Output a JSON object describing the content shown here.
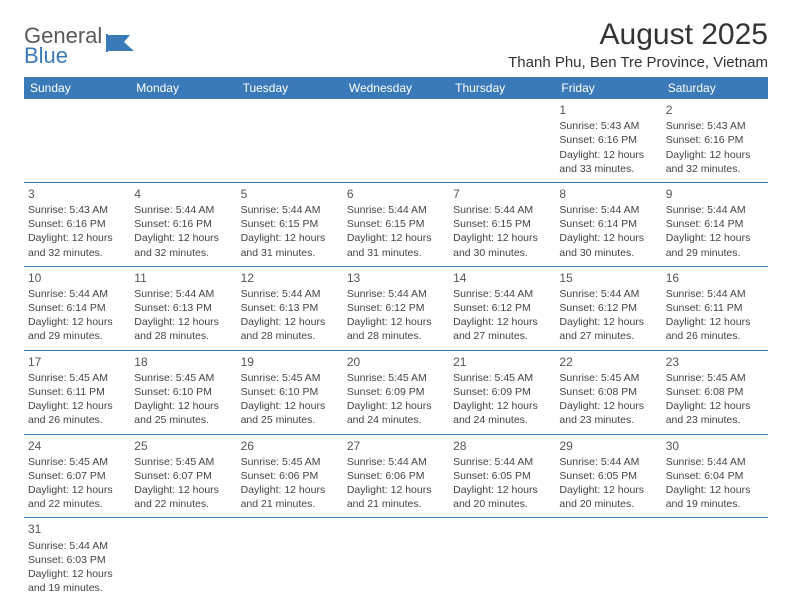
{
  "logo": {
    "word1": "General",
    "word2": "Blue"
  },
  "title": "August 2025",
  "location": "Thanh Phu, Ben Tre Province, Vietnam",
  "colors": {
    "header_bg": "#3a7ab8",
    "header_text": "#ffffff",
    "border": "#3a7ab8",
    "body_text": "#444444",
    "title_text": "#333333",
    "logo_gray": "#5a5a5a",
    "logo_blue": "#3a7ab8",
    "background": "#ffffff"
  },
  "days_of_week": [
    "Sunday",
    "Monday",
    "Tuesday",
    "Wednesday",
    "Thursday",
    "Friday",
    "Saturday"
  ],
  "weeks": [
    [
      null,
      null,
      null,
      null,
      null,
      {
        "n": "1",
        "sr": "Sunrise: 5:43 AM",
        "ss": "Sunset: 6:16 PM",
        "d1": "Daylight: 12 hours",
        "d2": "and 33 minutes."
      },
      {
        "n": "2",
        "sr": "Sunrise: 5:43 AM",
        "ss": "Sunset: 6:16 PM",
        "d1": "Daylight: 12 hours",
        "d2": "and 32 minutes."
      }
    ],
    [
      {
        "n": "3",
        "sr": "Sunrise: 5:43 AM",
        "ss": "Sunset: 6:16 PM",
        "d1": "Daylight: 12 hours",
        "d2": "and 32 minutes."
      },
      {
        "n": "4",
        "sr": "Sunrise: 5:44 AM",
        "ss": "Sunset: 6:16 PM",
        "d1": "Daylight: 12 hours",
        "d2": "and 32 minutes."
      },
      {
        "n": "5",
        "sr": "Sunrise: 5:44 AM",
        "ss": "Sunset: 6:15 PM",
        "d1": "Daylight: 12 hours",
        "d2": "and 31 minutes."
      },
      {
        "n": "6",
        "sr": "Sunrise: 5:44 AM",
        "ss": "Sunset: 6:15 PM",
        "d1": "Daylight: 12 hours",
        "d2": "and 31 minutes."
      },
      {
        "n": "7",
        "sr": "Sunrise: 5:44 AM",
        "ss": "Sunset: 6:15 PM",
        "d1": "Daylight: 12 hours",
        "d2": "and 30 minutes."
      },
      {
        "n": "8",
        "sr": "Sunrise: 5:44 AM",
        "ss": "Sunset: 6:14 PM",
        "d1": "Daylight: 12 hours",
        "d2": "and 30 minutes."
      },
      {
        "n": "9",
        "sr": "Sunrise: 5:44 AM",
        "ss": "Sunset: 6:14 PM",
        "d1": "Daylight: 12 hours",
        "d2": "and 29 minutes."
      }
    ],
    [
      {
        "n": "10",
        "sr": "Sunrise: 5:44 AM",
        "ss": "Sunset: 6:14 PM",
        "d1": "Daylight: 12 hours",
        "d2": "and 29 minutes."
      },
      {
        "n": "11",
        "sr": "Sunrise: 5:44 AM",
        "ss": "Sunset: 6:13 PM",
        "d1": "Daylight: 12 hours",
        "d2": "and 28 minutes."
      },
      {
        "n": "12",
        "sr": "Sunrise: 5:44 AM",
        "ss": "Sunset: 6:13 PM",
        "d1": "Daylight: 12 hours",
        "d2": "and 28 minutes."
      },
      {
        "n": "13",
        "sr": "Sunrise: 5:44 AM",
        "ss": "Sunset: 6:12 PM",
        "d1": "Daylight: 12 hours",
        "d2": "and 28 minutes."
      },
      {
        "n": "14",
        "sr": "Sunrise: 5:44 AM",
        "ss": "Sunset: 6:12 PM",
        "d1": "Daylight: 12 hours",
        "d2": "and 27 minutes."
      },
      {
        "n": "15",
        "sr": "Sunrise: 5:44 AM",
        "ss": "Sunset: 6:12 PM",
        "d1": "Daylight: 12 hours",
        "d2": "and 27 minutes."
      },
      {
        "n": "16",
        "sr": "Sunrise: 5:44 AM",
        "ss": "Sunset: 6:11 PM",
        "d1": "Daylight: 12 hours",
        "d2": "and 26 minutes."
      }
    ],
    [
      {
        "n": "17",
        "sr": "Sunrise: 5:45 AM",
        "ss": "Sunset: 6:11 PM",
        "d1": "Daylight: 12 hours",
        "d2": "and 26 minutes."
      },
      {
        "n": "18",
        "sr": "Sunrise: 5:45 AM",
        "ss": "Sunset: 6:10 PM",
        "d1": "Daylight: 12 hours",
        "d2": "and 25 minutes."
      },
      {
        "n": "19",
        "sr": "Sunrise: 5:45 AM",
        "ss": "Sunset: 6:10 PM",
        "d1": "Daylight: 12 hours",
        "d2": "and 25 minutes."
      },
      {
        "n": "20",
        "sr": "Sunrise: 5:45 AM",
        "ss": "Sunset: 6:09 PM",
        "d1": "Daylight: 12 hours",
        "d2": "and 24 minutes."
      },
      {
        "n": "21",
        "sr": "Sunrise: 5:45 AM",
        "ss": "Sunset: 6:09 PM",
        "d1": "Daylight: 12 hours",
        "d2": "and 24 minutes."
      },
      {
        "n": "22",
        "sr": "Sunrise: 5:45 AM",
        "ss": "Sunset: 6:08 PM",
        "d1": "Daylight: 12 hours",
        "d2": "and 23 minutes."
      },
      {
        "n": "23",
        "sr": "Sunrise: 5:45 AM",
        "ss": "Sunset: 6:08 PM",
        "d1": "Daylight: 12 hours",
        "d2": "and 23 minutes."
      }
    ],
    [
      {
        "n": "24",
        "sr": "Sunrise: 5:45 AM",
        "ss": "Sunset: 6:07 PM",
        "d1": "Daylight: 12 hours",
        "d2": "and 22 minutes."
      },
      {
        "n": "25",
        "sr": "Sunrise: 5:45 AM",
        "ss": "Sunset: 6:07 PM",
        "d1": "Daylight: 12 hours",
        "d2": "and 22 minutes."
      },
      {
        "n": "26",
        "sr": "Sunrise: 5:45 AM",
        "ss": "Sunset: 6:06 PM",
        "d1": "Daylight: 12 hours",
        "d2": "and 21 minutes."
      },
      {
        "n": "27",
        "sr": "Sunrise: 5:44 AM",
        "ss": "Sunset: 6:06 PM",
        "d1": "Daylight: 12 hours",
        "d2": "and 21 minutes."
      },
      {
        "n": "28",
        "sr": "Sunrise: 5:44 AM",
        "ss": "Sunset: 6:05 PM",
        "d1": "Daylight: 12 hours",
        "d2": "and 20 minutes."
      },
      {
        "n": "29",
        "sr": "Sunrise: 5:44 AM",
        "ss": "Sunset: 6:05 PM",
        "d1": "Daylight: 12 hours",
        "d2": "and 20 minutes."
      },
      {
        "n": "30",
        "sr": "Sunrise: 5:44 AM",
        "ss": "Sunset: 6:04 PM",
        "d1": "Daylight: 12 hours",
        "d2": "and 19 minutes."
      }
    ],
    [
      {
        "n": "31",
        "sr": "Sunrise: 5:44 AM",
        "ss": "Sunset: 6:03 PM",
        "d1": "Daylight: 12 hours",
        "d2": "and 19 minutes."
      },
      null,
      null,
      null,
      null,
      null,
      null
    ]
  ]
}
